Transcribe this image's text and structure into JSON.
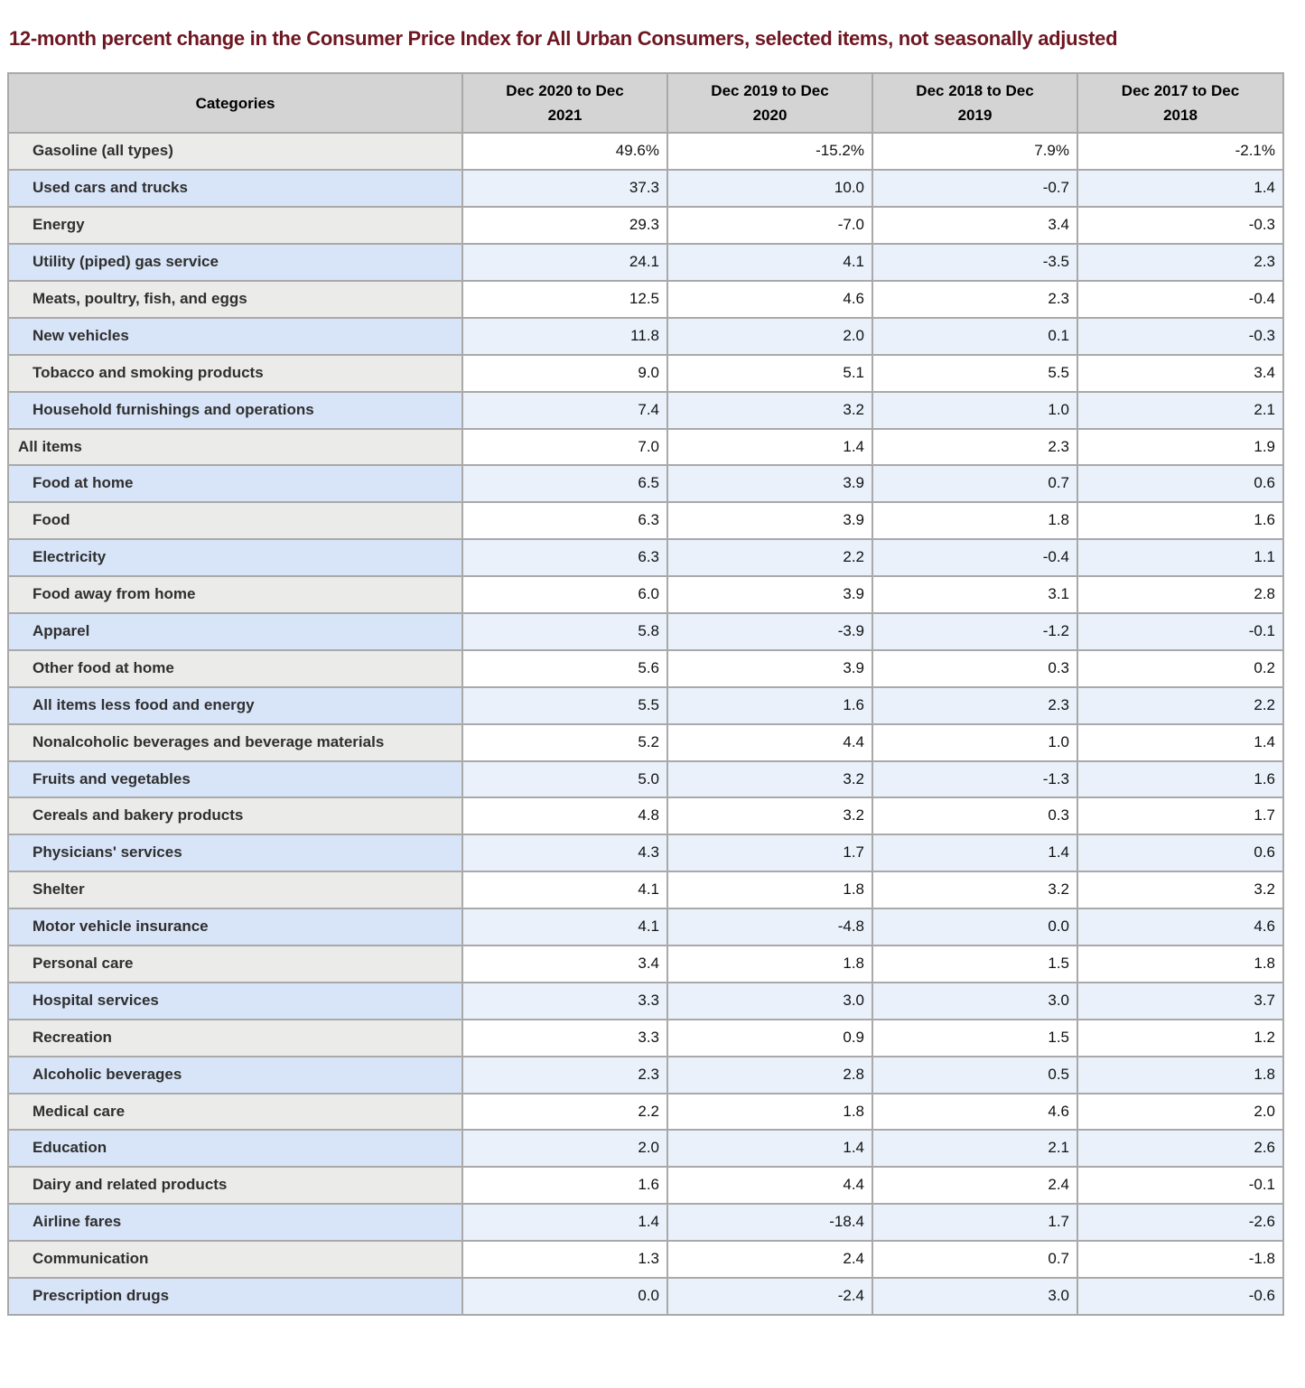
{
  "colors": {
    "title_text": "#6e1621",
    "header_bg": "#d4d4d4",
    "gray_row_category_bg": "#ebebe9",
    "gray_row_value_bg": "#ffffff",
    "blue_row_category_bg": "#d8e5f8",
    "blue_row_value_bg": "#eaf1fb",
    "border": "#a9a9a9"
  },
  "chart_data": {
    "type": "table",
    "title": "12-month percent change in the Consumer Price Index for All Urban Consumers, selected items, not seasonally adjusted",
    "columns": [
      "Categories",
      "Dec 2020 to Dec\n2021",
      "Dec 2019 to Dec\n2020",
      "Dec 2018 to Dec\n2019",
      "Dec 2017 to Dec\n2018"
    ],
    "rows": [
      {
        "label": "Gasoline (all types)",
        "indent": true,
        "values": [
          "49.6%",
          "-15.2%",
          "7.9%",
          "-2.1%"
        ]
      },
      {
        "label": "Used cars and trucks",
        "indent": true,
        "values": [
          "37.3",
          "10.0",
          "-0.7",
          "1.4"
        ]
      },
      {
        "label": "Energy",
        "indent": true,
        "values": [
          "29.3",
          "-7.0",
          "3.4",
          "-0.3"
        ]
      },
      {
        "label": "Utility (piped) gas service",
        "indent": true,
        "values": [
          "24.1",
          "4.1",
          "-3.5",
          "2.3"
        ]
      },
      {
        "label": "Meats, poultry, fish, and eggs",
        "indent": true,
        "values": [
          "12.5",
          "4.6",
          "2.3",
          "-0.4"
        ]
      },
      {
        "label": "New vehicles",
        "indent": true,
        "values": [
          "11.8",
          "2.0",
          "0.1",
          "-0.3"
        ]
      },
      {
        "label": "Tobacco and smoking products",
        "indent": true,
        "values": [
          "9.0",
          "5.1",
          "5.5",
          "3.4"
        ]
      },
      {
        "label": "Household furnishings and operations",
        "indent": true,
        "values": [
          "7.4",
          "3.2",
          "1.0",
          "2.1"
        ]
      },
      {
        "label": "All items",
        "indent": false,
        "values": [
          "7.0",
          "1.4",
          "2.3",
          "1.9"
        ]
      },
      {
        "label": "Food at home",
        "indent": true,
        "values": [
          "6.5",
          "3.9",
          "0.7",
          "0.6"
        ]
      },
      {
        "label": "Food",
        "indent": true,
        "values": [
          "6.3",
          "3.9",
          "1.8",
          "1.6"
        ]
      },
      {
        "label": "Electricity",
        "indent": true,
        "values": [
          "6.3",
          "2.2",
          "-0.4",
          "1.1"
        ]
      },
      {
        "label": "Food away from home",
        "indent": true,
        "values": [
          "6.0",
          "3.9",
          "3.1",
          "2.8"
        ]
      },
      {
        "label": "Apparel",
        "indent": true,
        "values": [
          "5.8",
          "-3.9",
          "-1.2",
          "-0.1"
        ]
      },
      {
        "label": "Other food at home",
        "indent": true,
        "values": [
          "5.6",
          "3.9",
          "0.3",
          "0.2"
        ]
      },
      {
        "label": "All items less food and energy",
        "indent": true,
        "values": [
          "5.5",
          "1.6",
          "2.3",
          "2.2"
        ]
      },
      {
        "label": "Nonalcoholic beverages and beverage materials",
        "indent": true,
        "values": [
          "5.2",
          "4.4",
          "1.0",
          "1.4"
        ]
      },
      {
        "label": "Fruits and vegetables",
        "indent": true,
        "values": [
          "5.0",
          "3.2",
          "-1.3",
          "1.6"
        ]
      },
      {
        "label": "Cereals and bakery products",
        "indent": true,
        "values": [
          "4.8",
          "3.2",
          "0.3",
          "1.7"
        ]
      },
      {
        "label": "Physicians' services",
        "indent": true,
        "values": [
          "4.3",
          "1.7",
          "1.4",
          "0.6"
        ]
      },
      {
        "label": "Shelter",
        "indent": true,
        "values": [
          "4.1",
          "1.8",
          "3.2",
          "3.2"
        ]
      },
      {
        "label": "Motor vehicle insurance",
        "indent": true,
        "values": [
          "4.1",
          "-4.8",
          "0.0",
          "4.6"
        ]
      },
      {
        "label": "Personal care",
        "indent": true,
        "values": [
          "3.4",
          "1.8",
          "1.5",
          "1.8"
        ]
      },
      {
        "label": "Hospital services",
        "indent": true,
        "values": [
          "3.3",
          "3.0",
          "3.0",
          "3.7"
        ]
      },
      {
        "label": "Recreation",
        "indent": true,
        "values": [
          "3.3",
          "0.9",
          "1.5",
          "1.2"
        ]
      },
      {
        "label": "Alcoholic beverages",
        "indent": true,
        "values": [
          "2.3",
          "2.8",
          "0.5",
          "1.8"
        ]
      },
      {
        "label": "Medical care",
        "indent": true,
        "values": [
          "2.2",
          "1.8",
          "4.6",
          "2.0"
        ]
      },
      {
        "label": "Education",
        "indent": true,
        "values": [
          "2.0",
          "1.4",
          "2.1",
          "2.6"
        ]
      },
      {
        "label": "Dairy and related products",
        "indent": true,
        "values": [
          "1.6",
          "4.4",
          "2.4",
          "-0.1"
        ]
      },
      {
        "label": "Airline fares",
        "indent": true,
        "values": [
          "1.4",
          "-18.4",
          "1.7",
          "-2.6"
        ]
      },
      {
        "label": "Communication",
        "indent": true,
        "values": [
          "1.3",
          "2.4",
          "0.7",
          "-1.8"
        ]
      },
      {
        "label": "Prescription drugs",
        "indent": true,
        "values": [
          "0.0",
          "-2.4",
          "3.0",
          "-0.6"
        ]
      }
    ]
  }
}
